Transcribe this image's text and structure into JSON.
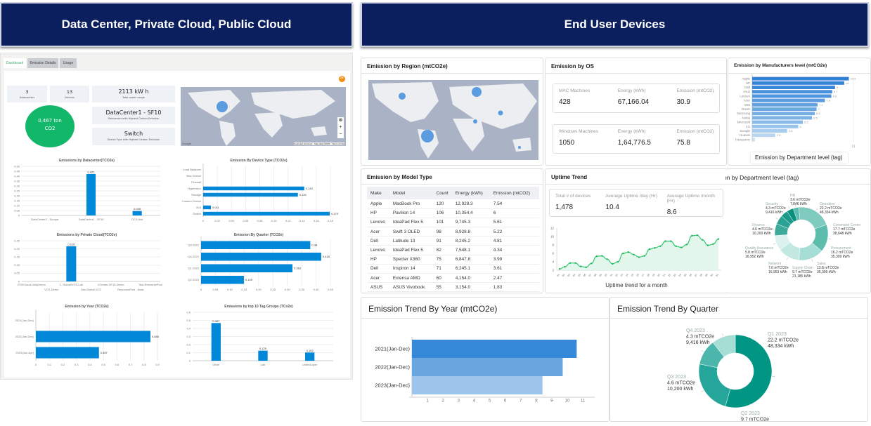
{
  "banners": {
    "left": "Data Center, Private Cloud, Public Cloud",
    "right": "End User Devices"
  },
  "left_dashboard": {
    "tabs": [
      "Dashboard",
      "Emission Details",
      "Usage"
    ],
    "stats": [
      {
        "value": "3",
        "label": "Datacenters"
      },
      {
        "value": "13",
        "label": "Devices"
      },
      {
        "value": "2113 kW h",
        "label": "Total power usage"
      },
      {
        "value": "DataCenter1 - SF10",
        "label": "Datacenter with Highest Carbon Emission"
      },
      {
        "value": "Switch",
        "label": "Device Type with Highest Carbon Emission"
      }
    ],
    "co2": {
      "value": "0.467 ton",
      "unit": "CO2"
    },
    "map": {
      "google": "Google",
      "shortcuts": "Keyboard shortcuts",
      "mapdata": "Map data ©2023",
      "terms": "Terms of Use"
    }
  },
  "os": {
    "title": "Emission by OS",
    "rows": [
      {
        "name": "MAC Machines",
        "count": "428",
        "energy_label": "Energy (kWh)",
        "energy": "67,166.04",
        "emission_label": "Emission (mtCO2)",
        "emission": "30.9"
      },
      {
        "name": "Windows Machines",
        "count": "1050",
        "energy_label": "Energy (kWh)",
        "energy": "1,64,776.5",
        "emission_label": "Emission (mtCO2)",
        "emission": "75.8"
      }
    ]
  },
  "region": {
    "title": "Emission by Region (mtCO2e)"
  },
  "model_table": {
    "title": "Emission by Model Type",
    "columns": [
      "Make",
      "Model",
      "Count",
      "Energy (kWh)",
      "Emission (mtCO2)"
    ],
    "rows": [
      [
        "Apple",
        "MacBook Pro",
        "120",
        "12,928.3",
        "7.54"
      ],
      [
        "HP",
        "Pavilion 14",
        "106",
        "10,354.4",
        "6"
      ],
      [
        "Lenovo",
        "IdeaPad Flex 5",
        "101",
        "9,745.3",
        "5.61"
      ],
      [
        "Acer",
        "Swift 3 OLED",
        "98",
        "8,928.8",
        "5.22"
      ],
      [
        "Dell",
        "Latitude 13",
        "91",
        "8,245.2",
        "4.81"
      ],
      [
        "Lenovo",
        "IdeaPad Flex 5",
        "82",
        "7,548.1",
        "4.34"
      ],
      [
        "HP",
        "Specter X360",
        "75",
        "6,847.8",
        "3.99"
      ],
      [
        "Dell",
        "Inspiron 14",
        "71",
        "6,245.1",
        "3.61"
      ],
      [
        "Acer",
        "Extensa AMD",
        "60",
        "4,154.0",
        "2.47"
      ],
      [
        "ASUS",
        "ASUS Vivobook",
        "55",
        "3,154.0",
        "1.83"
      ]
    ]
  },
  "uptime": {
    "title": "Uptime Trend",
    "metrics": [
      {
        "label": "Total # of devices",
        "value": "1,478"
      },
      {
        "label": "Average Uptime /day (Hr)",
        "value": "10.4"
      },
      {
        "label": "Average Uptime /month (Hr)",
        "value": "8.6"
      }
    ],
    "caption": "Uptime trend for a month"
  },
  "manufacturers": {
    "title": "Emission by Manufacturers level (mtCO2e)",
    "overlay": "Emission by Department level (tag)"
  },
  "department": {
    "title": "Emission by Department level (tag)"
  },
  "trend_year": {
    "title": "Emission Trend By Year (mtCO2e)"
  },
  "trend_quarter": {
    "title": "Emission Trend By Quarter"
  },
  "colors": {
    "banner": "#0b1f5e",
    "bar": "#0288d9",
    "green": "#12b76a",
    "teal": "#009683"
  },
  "chart_data": [
    {
      "type": "bar",
      "title": "Emissions by Datacenter(TCO2e)",
      "categories": [
        "DataCenter2 - Europe",
        "DataCenter1 - SF10",
        "DC3-Aus"
      ],
      "values": [
        0,
        0.422,
        0.045
      ],
      "ylim": [
        0,
        0.5
      ],
      "ticks": [
        0,
        0.05,
        0.1,
        0.15,
        0.2,
        0.25,
        0.3,
        0.35,
        0.4,
        0.45,
        0.5
      ],
      "tick_labels": [
        "0",
        "0.05",
        "0.10",
        "0.15",
        "0.20",
        "0.25",
        "0.30",
        "0.35",
        "0.40",
        "0.45",
        "0.50"
      ]
    },
    {
      "type": "hbar",
      "title": "Emission By Device Type (TCO2e)",
      "categories": [
        "Load Balancer",
        "Mac Device",
        "Firewall",
        "Hypervisor",
        "Storage",
        "Custom Device",
        "N/A",
        "Switch"
      ],
      "values": [
        0,
        0,
        0,
        0.143,
        0.134,
        0,
        0.011,
        0.179
      ],
      "xlim": [
        0,
        0.18
      ],
      "ticks": [
        0,
        0.02,
        0.04,
        0.06,
        0.08,
        0.1,
        0.12,
        0.14,
        0.16,
        0.18
      ],
      "tick_labels": [
        "0",
        "0.02",
        "0.04",
        "0.06",
        "0.08",
        "0.10",
        "0.12",
        "0.14",
        "0.16",
        "0.18"
      ]
    },
    {
      "type": "bar",
      "title": "Emissions by Private Cloud(TCO2e)",
      "categories": [
        "ESXCloud-UnityDemo",
        "VCS-Demo",
        "1. Global/VCS-Lab",
        "Lab-Global VCS",
        "VCenter-SF10-Demo",
        "ResourcePool - Avas",
        "Test-ResourcePool"
      ],
      "values": [
        0,
        0,
        0.216,
        0,
        0,
        0,
        0
      ],
      "ylim": [
        0,
        0.25
      ],
      "ticks": [
        0,
        0.05,
        0.1,
        0.15,
        0.2,
        0.25
      ],
      "tick_labels": [
        "0",
        "0.05",
        "0.10",
        "0.15",
        "0.20",
        "0.25"
      ]
    },
    {
      "type": "hbar",
      "title": "Emission By Quarter (TCO2e)",
      "categories": [
        "Q3-2022",
        "Q4-2022",
        "Q1-2023",
        "Q2-2023"
      ],
      "values": [
        0.38,
        0.418,
        0.318,
        0.149
      ],
      "xlim": [
        0,
        0.45
      ],
      "ticks": [
        0,
        0.05,
        0.1,
        0.15,
        0.2,
        0.25,
        0.3,
        0.35,
        0.4,
        0.45
      ],
      "tick_labels": [
        "0",
        "0.05",
        "0.10",
        "0.15",
        "0.20",
        "0.25",
        "0.30",
        "0.35",
        "0.40",
        "0.45"
      ]
    },
    {
      "type": "hbar",
      "title": "Emission by Year (TCO2e)",
      "categories": [
        "2021(Jan-Dec)",
        "2022(Jan-Dec)",
        "2023(Jan-Apr)"
      ],
      "values": [
        0,
        0.848,
        0.467
      ],
      "xlim": [
        0,
        0.9
      ],
      "ticks": [
        0,
        0.1,
        0.2,
        0.3,
        0.4,
        0.5,
        0.6,
        0.7,
        0.8,
        0.9
      ],
      "tick_labels": [
        "0",
        "0.1",
        "0.2",
        "0.3",
        "0.4",
        "0.5",
        "0.6",
        "0.7",
        "0.8",
        "0.9"
      ]
    },
    {
      "type": "bar",
      "title": "Emissions by top 10 Tag Groups (TCo2e)",
      "categories": [
        "Other",
        "Lab",
        "UnitedLayer"
      ],
      "values": [
        0.467,
        0.125,
        0.102
      ],
      "ylim": [
        0,
        0.6
      ],
      "ticks": [
        0,
        0.1,
        0.2,
        0.3,
        0.4,
        0.5,
        0.6
      ],
      "tick_labels": [
        "0",
        "0.1",
        "0.2",
        "0.3",
        "0.4",
        "0.5",
        "0.6"
      ]
    },
    {
      "type": "hbar",
      "title": "Emission by Manufacturers level (mtCO2e)",
      "categories": [
        "Apple",
        "HP",
        "Dell",
        "Asus",
        "Lenovo",
        "Acer",
        "MSI",
        "Razer",
        "Samsung",
        "Nokia",
        "Microsoft",
        "LG",
        "Google",
        "Huawei",
        "Panasonic"
      ],
      "values": [
        10.5,
        10,
        9,
        8.7,
        8.6,
        7.9,
        7.1,
        7,
        6.8,
        6.5,
        5.5,
        5,
        3.8,
        2.5,
        0.3
      ],
      "value_labels": [
        "10.5",
        "10",
        "9",
        "8.7",
        "8.6",
        "7.9",
        "7.1",
        "7",
        "6.8",
        "6.5",
        "5.5",
        "5",
        "3.8",
        "2.5",
        ""
      ],
      "xlim": [
        0,
        11
      ],
      "ticks": [
        11
      ],
      "tick_labels": [
        "11"
      ],
      "colors": [
        "#2f7fd6",
        "#3583d7",
        "#3b88d9",
        "#4a91dc",
        "#5096dd",
        "#5b9ddf",
        "#63a2e1",
        "#6ca8e2",
        "#75ade4",
        "#7db2e5",
        "#8abae8",
        "#98c3ea",
        "#a9cdee",
        "#b8d6f1",
        "#c7dff3"
      ]
    },
    {
      "type": "line",
      "title": "Uptime Trend",
      "x": [
        "01",
        "02",
        "03",
        "04",
        "05",
        "06",
        "07",
        "08",
        "09",
        "10",
        "11",
        "12",
        "13",
        "14",
        "15",
        "16",
        "17",
        "18",
        "19",
        "20",
        "21",
        "22",
        "23",
        "24",
        "25",
        "26",
        "27",
        "28",
        "29",
        "30",
        "31"
      ],
      "values": [
        2.3,
        2.8,
        3.7,
        3.7,
        2.9,
        2.7,
        3.6,
        5.3,
        5.4,
        4.6,
        3.5,
        4,
        6,
        6.3,
        5.7,
        5.1,
        5.4,
        7,
        7.3,
        7.7,
        8.9,
        8.9,
        7.7,
        7.4,
        8.1,
        10.2,
        10.3,
        9.2,
        7.9,
        8.2,
        9.4
      ],
      "ylim": [
        2,
        12
      ],
      "ticks": [
        2,
        4,
        6,
        8,
        10,
        12
      ],
      "xlabel": "Uptime trend for a month"
    },
    {
      "type": "pie",
      "title": "Emission by Department level (tag)",
      "categories": [
        "HR",
        "Operation",
        "Command Center",
        "Procurement",
        "Sales",
        "Supply Chain",
        "Network",
        "Quality Assurance",
        "Finance",
        "Security"
      ],
      "values": [
        3.6,
        22.2,
        17.7,
        16.2,
        13.8,
        9.7,
        7.6,
        5.8,
        4.6,
        4.3
      ],
      "value_labels": [
        "3.6 mTCO2e",
        "22.2 mTCO2e",
        "17.7 mTCO2e",
        "16.2 mTCO2e",
        "13.8 mTCO2e",
        "9.7 mTCO2e",
        "7.6 mTCO2e",
        "5.8 mTCO2e",
        "4.6 mTCO2e",
        "4.3 mTCO2e"
      ],
      "energy_labels": [
        "7,846 kWh",
        "48,334 kWh",
        "38,648 kWh",
        "35,309 kWh",
        "35,309 kWh",
        "21,185 kWh",
        "16,953 kWh",
        "16,952 kWh",
        "10,200 kWh",
        "9,416 kWh"
      ],
      "colors": [
        "#5dbcb0",
        "#7fcbbf",
        "#5cbcae",
        "#a6ddd5",
        "#c3e8e2",
        "#dcf2ee",
        "#3daa9c",
        "#2ba294",
        "#1c998a",
        "#0b8f7d"
      ]
    },
    {
      "type": "hbar",
      "title": "Emission Trend By Year (mtCO2e)",
      "categories": [
        "2021(Jan-Dec)",
        "2022(Jan-Dec)",
        "2023(Jan-Dec)"
      ],
      "values": [
        10.6,
        9.7,
        8.4
      ],
      "xlim": [
        0,
        11.4
      ],
      "ticks": [
        1,
        2,
        3,
        4,
        5,
        6,
        7,
        8,
        9,
        10,
        11
      ],
      "tick_labels": [
        "1",
        "2",
        "3",
        "4",
        "5",
        "6",
        "7",
        "8",
        "9",
        "10",
        "11"
      ],
      "colors": [
        "#3688d8",
        "#69a6e0",
        "#9dc5ec"
      ]
    },
    {
      "type": "pie",
      "title": "Emission Trend By Quarter",
      "categories": [
        "Q1 2023",
        "Q2 2023",
        "Q3 2023",
        "Q4 2023"
      ],
      "values": [
        22.2,
        9.7,
        4.6,
        4.3
      ],
      "value_labels": [
        "22.2 mTCO2e",
        "9.7 mTCO2e",
        "4.6 mTCO2e",
        "4.3 mTCO2e"
      ],
      "energy_labels": [
        "48,334 kWh",
        "",
        "10,200 kWh",
        "9,416 kWh"
      ],
      "colors": [
        "#009683",
        "#26a69a",
        "#4db6ac",
        "#a6ded6"
      ]
    }
  ]
}
